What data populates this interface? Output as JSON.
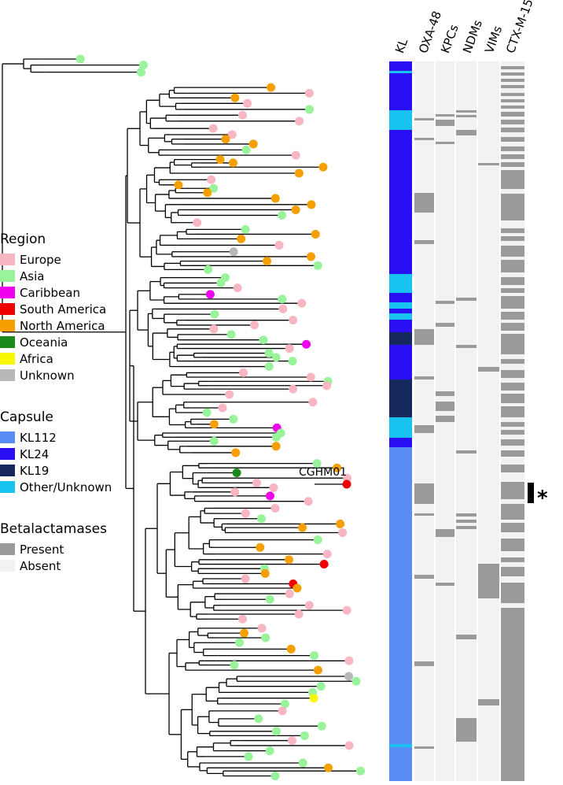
{
  "figure": {
    "columns": [
      "KL",
      "OXA-48",
      "KPCs",
      "NDMs",
      "VIMs",
      "CTX-M-15"
    ],
    "tip_label": "CGHM01",
    "highlight_marker": "*"
  },
  "legend_region": {
    "title": "Region",
    "items": [
      {
        "label": "Europe",
        "color": "#f7b6c2"
      },
      {
        "label": "Asia",
        "color": "#98f39a"
      },
      {
        "label": "Caribbean",
        "color": "#ee00ee"
      },
      {
        "label": "South America",
        "color": "#ee0000"
      },
      {
        "label": "North America",
        "color": "#f59f00"
      },
      {
        "label": "Oceania",
        "color": "#1a8a1a"
      },
      {
        "label": "Africa",
        "color": "#f8f800"
      },
      {
        "label": "Unknown",
        "color": "#b8b8b8"
      }
    ]
  },
  "legend_capsule": {
    "title": "Capsule",
    "items": [
      {
        "label": "KL112",
        "color": "#5a8cf5"
      },
      {
        "label": "KL24",
        "color": "#2a0ff5"
      },
      {
        "label": "KL19",
        "color": "#16295e"
      },
      {
        "label": "Other/Unknown",
        "color": "#19c3ef"
      }
    ]
  },
  "legend_beta": {
    "title": "Betalactamases",
    "items": [
      {
        "label": "Present",
        "color": "#9a9a9a"
      },
      {
        "label": "Absent",
        "color": "#f2f2f2"
      }
    ]
  }
}
